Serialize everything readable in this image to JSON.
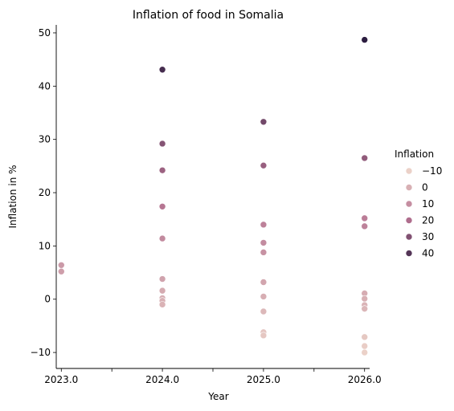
{
  "chart_data": {
    "type": "scatter",
    "title": "Inflation of food in Somalia",
    "xlabel": "Year",
    "ylabel": "Inflation in %",
    "xlim": [
      2022.95,
      2026.05
    ],
    "ylim": [
      -13,
      51.5
    ],
    "x_ticks": [
      2023.0,
      2023.5,
      2024.0,
      2024.5,
      2025.0,
      2025.5,
      2026.0
    ],
    "x_tick_labels": [
      "2023.0",
      "",
      "2024.0",
      "",
      "2025.0",
      "",
      "2026.0"
    ],
    "y_ticks": [
      -10,
      0,
      10,
      20,
      30,
      40,
      50
    ],
    "y_tick_labels": [
      "−10",
      "0",
      "10",
      "20",
      "30",
      "40",
      "50"
    ],
    "grid": false,
    "legend": {
      "title": "Inflation",
      "position": "right",
      "entries": [
        {
          "label": "−10",
          "value": -10
        },
        {
          "label": "0",
          "value": 0
        },
        {
          "label": "10",
          "value": 10
        },
        {
          "label": "20",
          "value": 20
        },
        {
          "label": "30",
          "value": 30
        },
        {
          "label": "40",
          "value": 40
        }
      ]
    },
    "color_scale": {
      "vmin": -10.5,
      "vmax": 48.7,
      "low": "#ecd3c9",
      "mid": "#b3708f",
      "high": "#2c1d40"
    },
    "points": [
      {
        "x": 2023,
        "y": 6.4
      },
      {
        "x": 2023,
        "y": 5.2
      },
      {
        "x": 2024,
        "y": 43.1
      },
      {
        "x": 2024,
        "y": 29.2
      },
      {
        "x": 2024,
        "y": 24.2
      },
      {
        "x": 2024,
        "y": 17.4
      },
      {
        "x": 2024,
        "y": 11.4
      },
      {
        "x": 2024,
        "y": 3.8
      },
      {
        "x": 2024,
        "y": 1.6
      },
      {
        "x": 2024,
        "y": 0.2
      },
      {
        "x": 2024,
        "y": -0.3
      },
      {
        "x": 2024,
        "y": -1.0
      },
      {
        "x": 2025,
        "y": 33.3
      },
      {
        "x": 2025,
        "y": 25.1
      },
      {
        "x": 2025,
        "y": 14.0
      },
      {
        "x": 2025,
        "y": 10.6
      },
      {
        "x": 2025,
        "y": 8.8
      },
      {
        "x": 2025,
        "y": 3.2
      },
      {
        "x": 2025,
        "y": 0.5
      },
      {
        "x": 2025,
        "y": -2.3
      },
      {
        "x": 2025,
        "y": -6.2
      },
      {
        "x": 2025,
        "y": -6.8
      },
      {
        "x": 2026,
        "y": 48.7
      },
      {
        "x": 2026,
        "y": 26.5
      },
      {
        "x": 2026,
        "y": 15.2
      },
      {
        "x": 2026,
        "y": 13.7
      },
      {
        "x": 2026,
        "y": 1.1
      },
      {
        "x": 2026,
        "y": 0.1
      },
      {
        "x": 2026,
        "y": -1.1
      },
      {
        "x": 2026,
        "y": -1.8
      },
      {
        "x": 2026,
        "y": -7.1
      },
      {
        "x": 2026,
        "y": -8.8
      },
      {
        "x": 2026,
        "y": -10.0
      }
    ]
  }
}
